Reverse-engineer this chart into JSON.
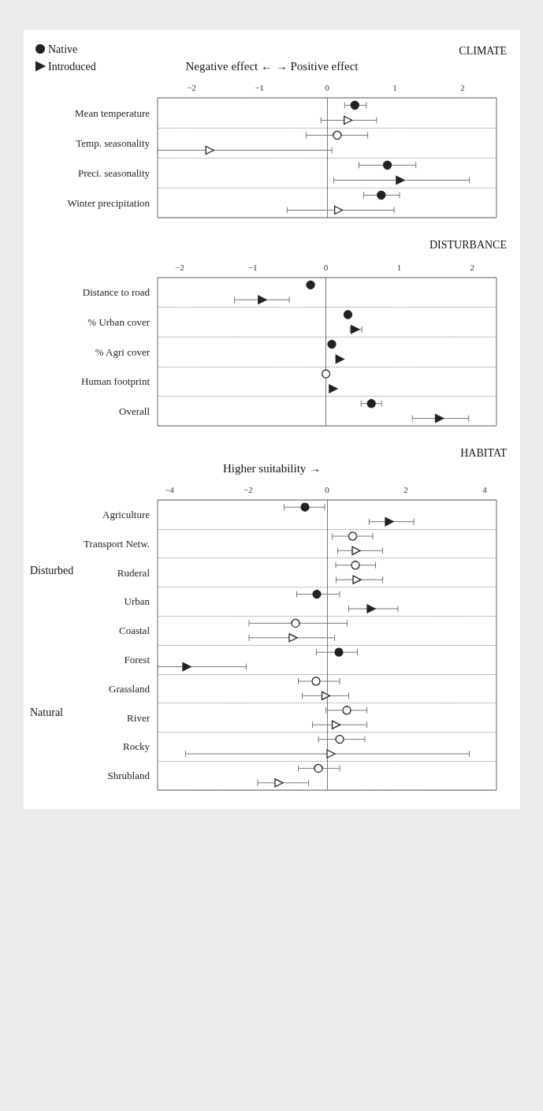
{
  "chart_data": [
    {
      "type": "scatter",
      "orientation": "horizontal",
      "title": "CLIMATE",
      "annotations": [
        "Negative effect ← → Positive effect"
      ],
      "categories": [
        "Mean temperature",
        "Temp. seasonality",
        "Preci. seasonality",
        "Winter precipitation"
      ],
      "series": [
        {
          "name": "Native",
          "marker": "circle",
          "color": "#222222",
          "values": [
            0.41,
            null,
            0.89,
            0.8
          ],
          "errors": [
            [
              0.26,
              0.58
            ],
            null,
            [
              0.47,
              1.31
            ],
            [
              0.54,
              1.07
            ]
          ]
        },
        {
          "marker": "circle",
          "color": "#ffffff",
          "values": [
            null,
            0.15,
            null,
            null
          ],
          "errors": [
            null,
            [
              -0.31,
              0.6
            ],
            null,
            null
          ]
        },
        {
          "name": "Introduced",
          "marker": "triangle",
          "color": "#222222",
          "values": [
            null,
            null,
            1.08,
            null
          ],
          "errors": [
            null,
            null,
            [
              0.1,
              2.1
            ],
            null
          ]
        },
        {
          "marker": "triangle",
          "color": "#ffffff",
          "values": [
            0.31,
            -1.73,
            null,
            0.17
          ],
          "errors": [
            [
              -0.09,
              0.73
            ],
            [
              -2.5,
              0.07
            ],
            null,
            [
              -0.59,
              0.99
            ]
          ]
        }
      ],
      "xlim": [
        -2.5,
        2.5
      ],
      "xticks": [
        -2,
        -1,
        0,
        1,
        2
      ],
      "grid": "y",
      "legend": "top left",
      "ref_lines": [
        {
          "axis": "x",
          "value": 0
        }
      ]
    },
    {
      "type": "scatter",
      "orientation": "horizontal",
      "title": "DISTURBANCE",
      "categories": [
        "Distance to road",
        "% Urban cover",
        "% Agri cover",
        "Human footprint",
        "Overall"
      ],
      "series": [
        {
          "marker": "circle",
          "color": "#222222",
          "values": [
            -0.21,
            0.3,
            0.08,
            null,
            0.62
          ],
          "errors": [
            null,
            null,
            null,
            null,
            [
              0.48,
              0.76
            ]
          ]
        },
        {
          "marker": "circle",
          "color": "#ffffff",
          "values": [
            null,
            null,
            null,
            0.0,
            null
          ]
        },
        {
          "marker": "triangle",
          "color": "#222222",
          "values": [
            -0.87,
            0.4,
            0.19,
            0.1,
            1.55
          ],
          "errors": [
            [
              -1.25,
              -0.5
            ],
            [
              0.33,
              0.49
            ],
            null,
            null,
            [
              1.18,
              1.95
            ]
          ]
        }
      ],
      "xlim": [
        -2.3,
        2.33
      ],
      "xticks": [
        -2,
        -1,
        0,
        1,
        2
      ],
      "grid": "y",
      "ref_lines": [
        {
          "axis": "x",
          "value": 0
        }
      ]
    },
    {
      "type": "scatter",
      "orientation": "horizontal",
      "title": "HABITAT",
      "annotations": [
        "Higher suitability →",
        "Disturbed",
        "Natural"
      ],
      "categories": [
        "Agriculture",
        "Transport Netw.",
        "Ruderal",
        "Urban",
        "Coastal",
        "Forest",
        "Grassland",
        "River",
        "Rocky",
        "Shrubland"
      ],
      "series": [
        {
          "marker": "circle",
          "color": "#222222",
          "values": [
            -0.56,
            null,
            null,
            -0.26,
            null,
            0.3,
            null,
            null,
            null,
            null
          ],
          "errors": [
            [
              -1.09,
              -0.06
            ],
            null,
            null,
            [
              -0.77,
              0.32
            ],
            null,
            [
              -0.27,
              0.77
            ],
            null,
            null,
            null,
            null
          ]
        },
        {
          "marker": "circle",
          "color": "#ffffff",
          "values": [
            null,
            0.65,
            0.72,
            null,
            -0.8,
            null,
            -0.28,
            0.5,
            0.32,
            -0.22
          ],
          "errors": [
            null,
            [
              0.13,
              1.16
            ],
            [
              0.22,
              1.23
            ],
            null,
            [
              -1.98,
              0.51
            ],
            null,
            [
              -0.73,
              0.32
            ],
            [
              -0.03,
              1.01
            ],
            [
              -0.22,
              0.96
            ],
            [
              -0.73,
              0.32
            ]
          ]
        },
        {
          "marker": "triangle",
          "color": "#222222",
          "values": [
            1.58,
            null,
            null,
            1.12,
            null,
            -3.56,
            null,
            null,
            null,
            null
          ],
          "errors": [
            [
              1.07,
              2.2
            ],
            null,
            null,
            [
              0.55,
              1.8
            ],
            null,
            [
              -4.3,
              -2.05
            ],
            null,
            null,
            null,
            null
          ]
        },
        {
          "marker": "triangle",
          "color": "#ffffff",
          "values": [
            null,
            0.74,
            0.76,
            null,
            -0.86,
            null,
            -0.03,
            0.23,
            0.1,
            -1.22
          ],
          "errors": [
            null,
            [
              0.27,
              1.41
            ],
            [
              0.23,
              1.41
            ],
            null,
            [
              -1.98,
              0.19
            ],
            null,
            [
              -0.63,
              0.55
            ],
            [
              -0.37,
              1.01
            ],
            [
              -3.59,
              3.61
            ],
            [
              -1.76,
              -0.47
            ]
          ]
        }
      ],
      "xlim": [
        -4.3,
        4.3
      ],
      "xticks": [
        -4,
        -2,
        0,
        2,
        4
      ],
      "grid": "y",
      "ref_lines": [
        {
          "axis": "x",
          "value": 0
        }
      ]
    }
  ]
}
